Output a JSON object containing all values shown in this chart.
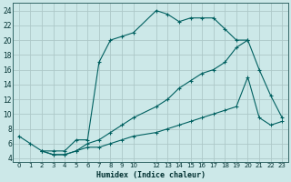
{
  "xlabel": "Humidex (Indice chaleur)",
  "bg_color": "#cce8e8",
  "grid_color": "#adc8c8",
  "line_color": "#006060",
  "xlim": [
    -0.5,
    23.5
  ],
  "ylim": [
    3.5,
    25.0
  ],
  "xticks": [
    0,
    1,
    2,
    3,
    4,
    5,
    6,
    7,
    8,
    9,
    10,
    12,
    13,
    14,
    15,
    16,
    17,
    18,
    19,
    20,
    21,
    22,
    23
  ],
  "yticks": [
    4,
    6,
    8,
    10,
    12,
    14,
    16,
    18,
    20,
    22,
    24
  ],
  "line1_x": [
    0,
    1,
    2,
    3,
    4,
    5,
    6,
    7,
    8,
    9,
    10,
    12,
    13,
    14,
    15,
    16,
    17,
    18,
    19,
    20
  ],
  "line1_y": [
    7,
    6,
    5,
    5,
    5,
    6.5,
    6.5,
    17,
    20,
    20.5,
    21,
    24,
    23.5,
    22.5,
    23,
    23,
    23,
    21.5,
    20,
    20
  ],
  "line2_x": [
    2,
    3,
    4,
    5,
    6,
    7,
    8,
    9,
    10,
    12,
    13,
    14,
    15,
    16,
    17,
    18,
    19,
    20,
    21,
    22,
    23
  ],
  "line2_y": [
    5,
    4.5,
    4.5,
    5,
    6,
    6.5,
    7.5,
    8.5,
    9.5,
    11,
    12,
    13.5,
    14.5,
    15.5,
    16,
    17,
    19,
    20,
    16,
    12.5,
    9.5
  ],
  "line3_x": [
    2,
    3,
    4,
    5,
    6,
    7,
    8,
    9,
    10,
    12,
    13,
    14,
    15,
    16,
    17,
    18,
    19,
    20,
    21,
    22,
    23
  ],
  "line3_y": [
    5,
    4.5,
    4.5,
    5,
    5.5,
    5.5,
    6,
    6.5,
    7,
    7.5,
    8,
    8.5,
    9,
    9.5,
    10,
    10.5,
    11,
    15,
    9.5,
    8.5,
    9
  ]
}
